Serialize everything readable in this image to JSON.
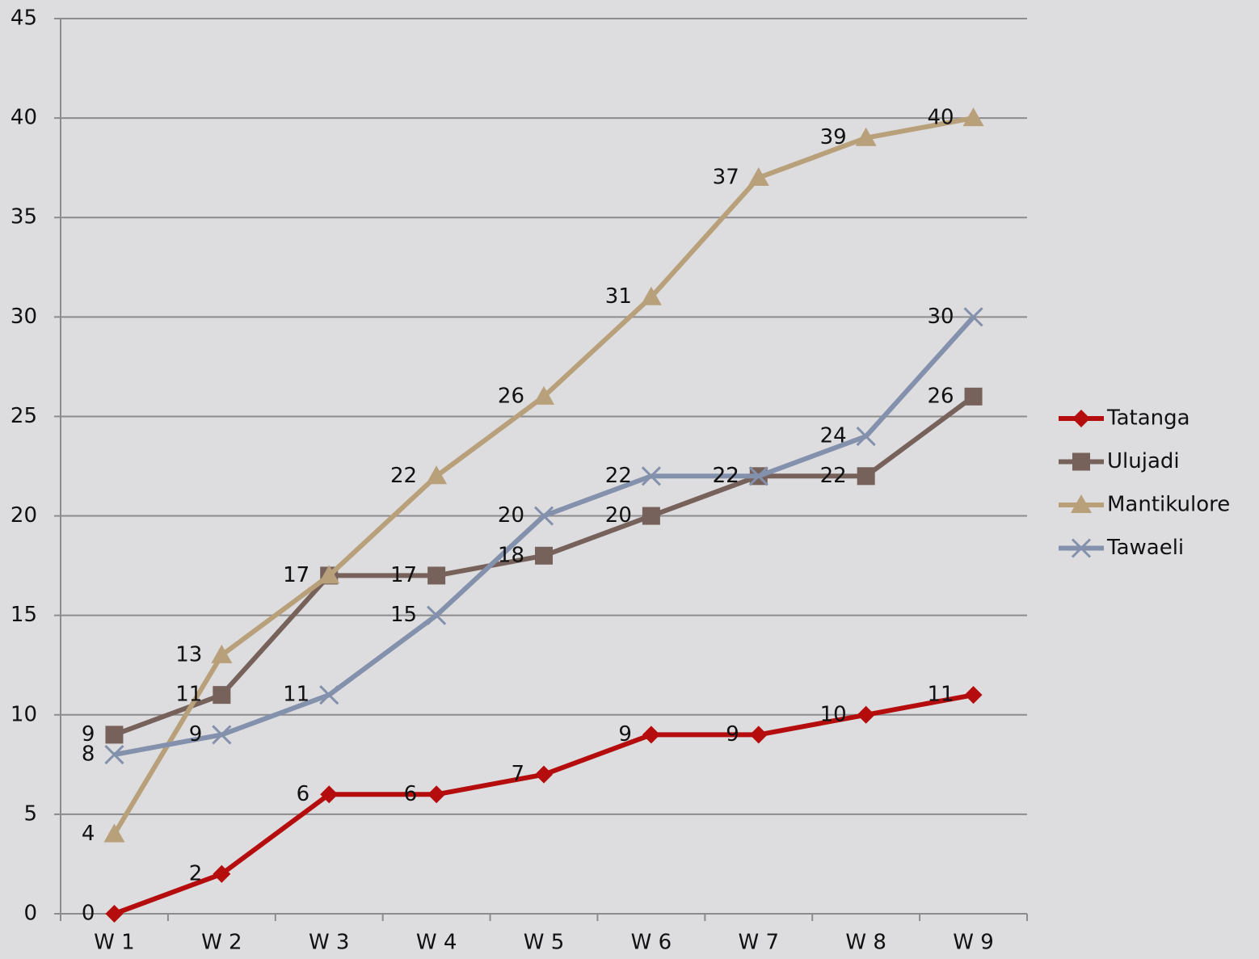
{
  "chart_data": {
    "type": "line",
    "categories": [
      "W 1",
      "W 2",
      "W 3",
      "W 4",
      "W 5",
      "W 6",
      "W 7",
      "W 8",
      "W 9"
    ],
    "series": [
      {
        "name": "Tatanga",
        "color": "#b50d0d",
        "marker": "diamond",
        "values": [
          0,
          2,
          6,
          6,
          7,
          9,
          9,
          10,
          11
        ]
      },
      {
        "name": "Ulujadi",
        "color": "#76625a",
        "marker": "square",
        "values": [
          9,
          11,
          17,
          17,
          18,
          20,
          22,
          22,
          26
        ]
      },
      {
        "name": "Mantikulore",
        "color": "#b8a07a",
        "marker": "triangle",
        "values": [
          4,
          13,
          17,
          22,
          26,
          31,
          37,
          39,
          40
        ]
      },
      {
        "name": "Tawaeli",
        "color": "#8391ad",
        "marker": "x",
        "values": [
          8,
          9,
          11,
          15,
          20,
          22,
          22,
          24,
          30
        ]
      }
    ],
    "ylim": [
      0,
      45
    ],
    "yticks": [
      0,
      5,
      10,
      15,
      20,
      25,
      30,
      35,
      40,
      45
    ],
    "grid": true,
    "legend": "right",
    "data_labels": true
  }
}
